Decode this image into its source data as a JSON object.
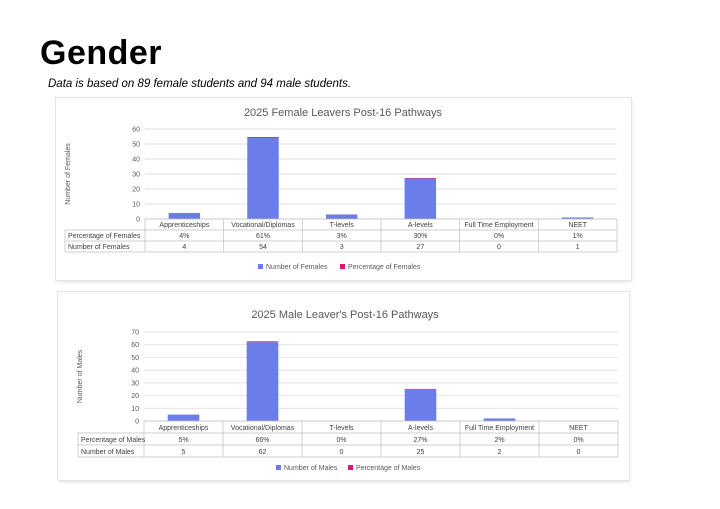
{
  "page": {
    "title": "Gender",
    "subtitle": "Data is based on 89 female students and 94 male students."
  },
  "colors": {
    "count_series": "#6a7de8",
    "percentage_series": "#d6187e",
    "gridline": "#d9d9d9",
    "table_border": "#bfbfbf"
  },
  "chart_data": [
    {
      "type": "bar",
      "stacked": true,
      "title": "2025 Female Leavers Post-16 Pathways",
      "xlabel": "",
      "ylabel": "Number of Females",
      "ylim": [
        0,
        60
      ],
      "yticks": [
        0,
        10,
        20,
        30,
        40,
        50,
        60
      ],
      "grid": true,
      "legend_position": "bottom",
      "categories": [
        "Apprenticeships",
        "Vocational/Diplomas",
        "T-levels",
        "A-levels",
        "Full Time Employment",
        "NEET"
      ],
      "series": [
        {
          "name": "Percentage of Females",
          "values": [
            0.04,
            0.61,
            0.03,
            0.3,
            0.0,
            0.01
          ],
          "labels": [
            "4%",
            "61%",
            "3%",
            "30%",
            "0%",
            "1%"
          ],
          "color": "#d6187e"
        },
        {
          "name": "Number of Females",
          "values": [
            4,
            54,
            3,
            27,
            0,
            1
          ],
          "labels": [
            "4",
            "54",
            "3",
            "27",
            "0",
            "1"
          ],
          "color": "#6a7de8"
        }
      ],
      "legend": [
        "Number of Females",
        "Percentage of Females"
      ]
    },
    {
      "type": "bar",
      "stacked": true,
      "title": "2025 Male Leaver's Post-16 Pathways",
      "xlabel": "",
      "ylabel": "Number of Males",
      "ylim": [
        0,
        70
      ],
      "yticks": [
        0,
        10,
        20,
        30,
        40,
        50,
        60,
        70
      ],
      "grid": true,
      "legend_position": "bottom",
      "categories": [
        "Apprenticeships",
        "Vocational/Diplomas",
        "T-levels",
        "A-levels",
        "Full Time Employment",
        "NEET"
      ],
      "series": [
        {
          "name": "Percentage of Males",
          "values": [
            0.05,
            0.66,
            0.0,
            0.27,
            0.02,
            0.0
          ],
          "labels": [
            "5%",
            "66%",
            "0%",
            "27%",
            "2%",
            "0%"
          ],
          "color": "#d6187e"
        },
        {
          "name": "Number of Males",
          "values": [
            5,
            62,
            0,
            25,
            2,
            0
          ],
          "labels": [
            "5",
            "62",
            "0",
            "25",
            "2",
            "0"
          ],
          "color": "#6a7de8"
        }
      ],
      "legend": [
        "Number of Males",
        "Percentage of Males"
      ]
    }
  ]
}
